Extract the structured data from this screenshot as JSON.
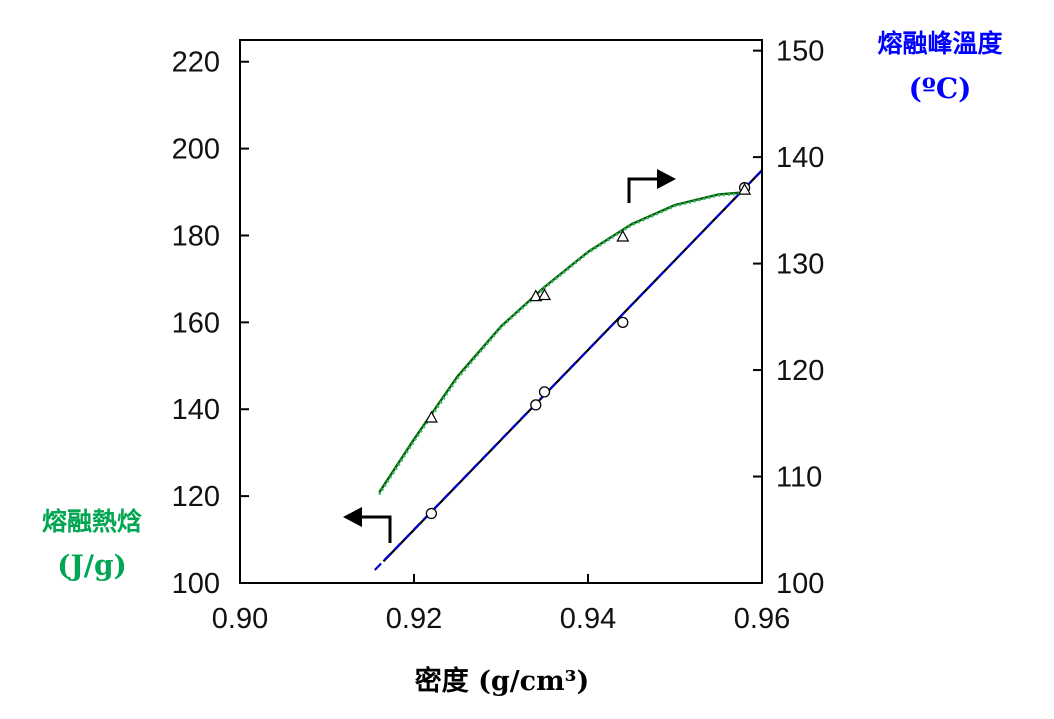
{
  "chart_data": {
    "type": "line",
    "xlabel": "密度 (g/cm³)",
    "ylabel_left": [
      "熔融熱焓",
      "(J/g)"
    ],
    "ylabel_right": [
      "熔融峰溫度",
      "(ºC)"
    ],
    "xlim": [
      0.9,
      0.96
    ],
    "ylim_left": [
      100,
      225
    ],
    "ylim_right": [
      100,
      151
    ],
    "x_ticks": [
      "0.90",
      "0.92",
      "0.94",
      "0.96"
    ],
    "y_left_ticks": [
      "100",
      "120",
      "140",
      "160",
      "180",
      "200",
      "220"
    ],
    "y_right_ticks": [
      "100",
      "110",
      "120",
      "130",
      "140",
      "150"
    ],
    "grid": false,
    "colors": {
      "left_axis_label": "#00a651",
      "right_axis_label": "#0000ff",
      "xlabel": "#000000",
      "points": "#000000",
      "fit_melt_temp": "#006400",
      "dotted_melt_temp": "#3cb371",
      "fit_enthalpy": "#000000",
      "dashed_enthalpy": "#0000cc"
    },
    "series": [
      {
        "axis": "left",
        "marker": "circle",
        "x": [
          0.922,
          0.934,
          0.935,
          0.944,
          0.958
        ],
        "y": [
          116,
          141,
          144,
          160,
          191
        ]
      },
      {
        "axis": "left",
        "style": "solid",
        "x": [
          0.9165,
          0.96
        ],
        "y": [
          105,
          195
        ]
      },
      {
        "axis": "left",
        "style": "dashed",
        "x": [
          0.9155,
          0.96
        ],
        "y": [
          103,
          195
        ]
      },
      {
        "axis": "right",
        "marker": "triangle",
        "x": [
          0.922,
          0.934,
          0.935,
          0.944,
          0.958
        ],
        "y": [
          115.5,
          126.9,
          127,
          132.5,
          136.9
        ]
      },
      {
        "axis": "right",
        "style": "solid",
        "x": [
          0.916,
          0.92,
          0.925,
          0.93,
          0.935,
          0.94,
          0.945,
          0.95,
          0.955,
          0.958
        ],
        "y": [
          108.5,
          113.5,
          119.4,
          124.1,
          127.8,
          131.1,
          133.7,
          135.5,
          136.5,
          136.7
        ]
      },
      {
        "axis": "right",
        "style": "dotted",
        "x": [
          0.916,
          0.92,
          0.925,
          0.93,
          0.935,
          0.94,
          0.945,
          0.95,
          0.955,
          0.958
        ],
        "y": [
          108.3,
          113.3,
          119.2,
          124.0,
          127.7,
          131.0,
          133.6,
          135.4,
          136.4,
          136.6
        ]
      }
    ]
  }
}
